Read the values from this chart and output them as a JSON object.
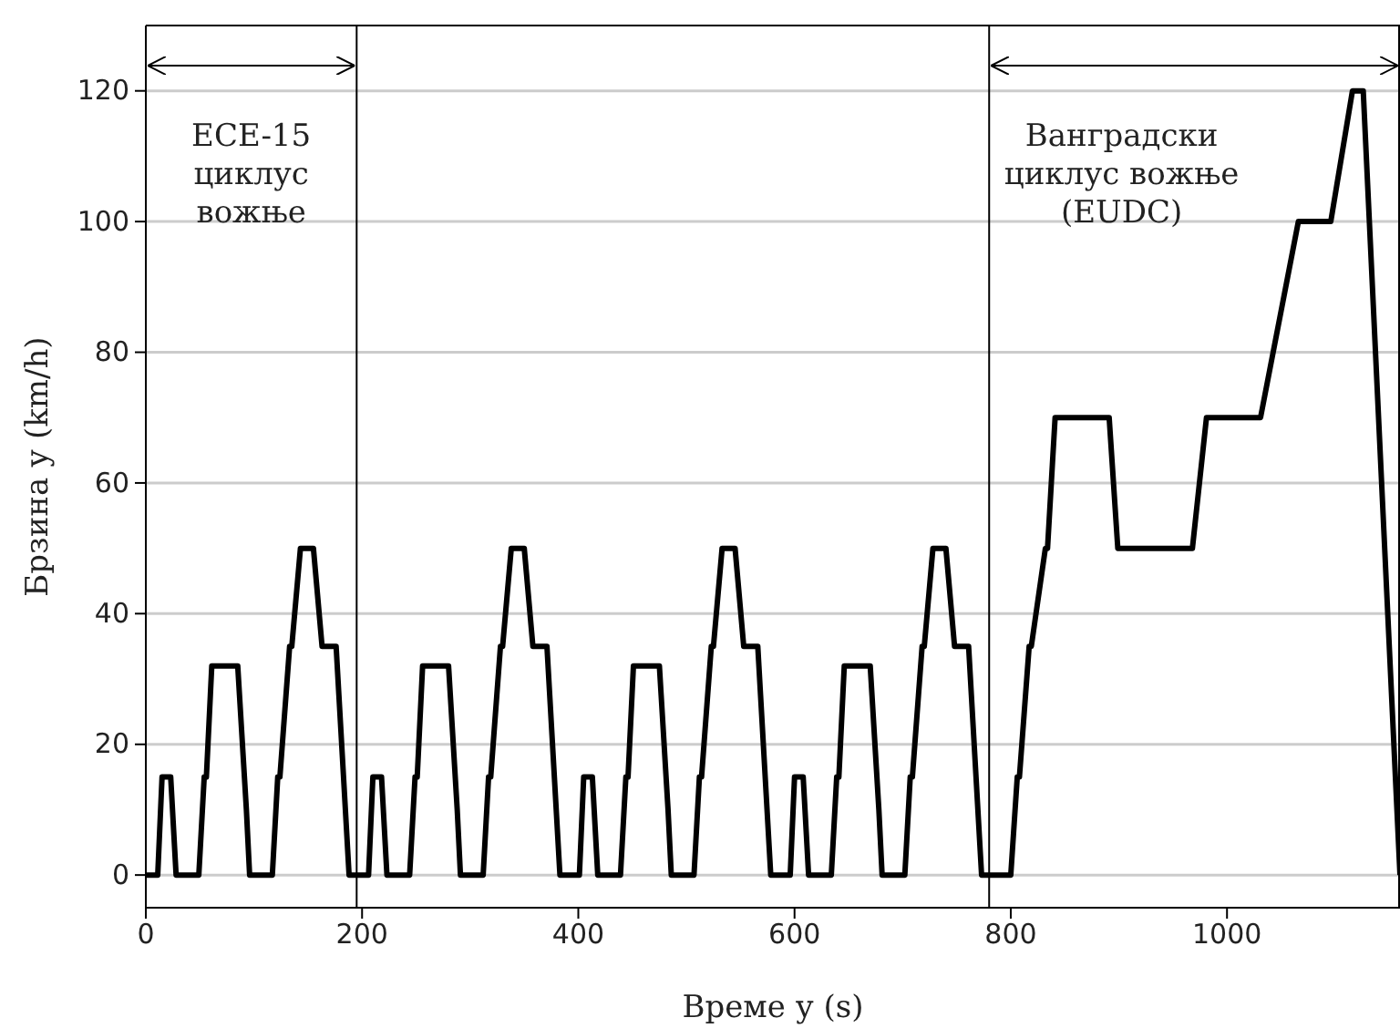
{
  "chart_data": {
    "type": "line",
    "xlabel": "Време у (s)",
    "ylabel": "Брзина у (km/h)",
    "xlim": [
      0,
      1160
    ],
    "xticks": [
      0,
      200,
      400,
      600,
      800,
      1000
    ],
    "ylim": [
      -5,
      130
    ],
    "yticks": [
      0,
      20,
      40,
      60,
      80,
      100,
      120
    ],
    "grid": "y",
    "marker": "none",
    "line_style": "solid",
    "series": [
      {
        "color": "#000000",
        "x": [
          0,
          11,
          15,
          23,
          28,
          49,
          54,
          56,
          61,
          85,
          93,
          96,
          117,
          122,
          124,
          133,
          135,
          143,
          155,
          163,
          176,
          188,
          195,
          206,
          210,
          218,
          223,
          244,
          249,
          251,
          256,
          280,
          288,
          291,
          312,
          317,
          319,
          328,
          330,
          338,
          350,
          358,
          371,
          383,
          390,
          401,
          405,
          413,
          418,
          439,
          444,
          446,
          451,
          475,
          483,
          486,
          507,
          512,
          514,
          523,
          525,
          533,
          545,
          553,
          566,
          578,
          585,
          596,
          600,
          608,
          613,
          634,
          639,
          641,
          646,
          670,
          678,
          681,
          702,
          707,
          709,
          718,
          720,
          728,
          740,
          748,
          761,
          773,
          780,
          800,
          806,
          808,
          817,
          819,
          832,
          834,
          841,
          891,
          899,
          968,
          981,
          1031,
          1066,
          1096,
          1116,
          1126,
          1160
        ],
        "values": [
          0,
          0,
          15,
          15,
          0,
          0,
          15,
          15,
          32,
          32,
          10,
          0,
          0,
          15,
          15,
          35,
          35,
          50,
          50,
          35,
          35,
          0,
          0,
          0,
          15,
          15,
          0,
          0,
          15,
          15,
          32,
          32,
          10,
          0,
          0,
          15,
          15,
          35,
          35,
          50,
          50,
          35,
          35,
          0,
          0,
          0,
          15,
          15,
          0,
          0,
          15,
          15,
          32,
          32,
          10,
          0,
          0,
          15,
          15,
          35,
          35,
          50,
          50,
          35,
          35,
          0,
          0,
          0,
          15,
          15,
          0,
          0,
          15,
          15,
          32,
          32,
          10,
          0,
          0,
          15,
          15,
          35,
          35,
          50,
          50,
          35,
          35,
          0,
          0,
          0,
          15,
          15,
          35,
          35,
          50,
          50,
          70,
          70,
          50,
          50,
          70,
          70,
          100,
          100,
          120,
          120,
          0
        ]
      }
    ],
    "ref_lines": [
      {
        "axis": "x",
        "value": 195,
        "color": "#000000"
      },
      {
        "axis": "x",
        "value": 780,
        "color": "#000000"
      }
    ],
    "annotations": [
      "ECE-15\nциклус\nвожње",
      "Ванградски\nциклус вожње\n(EUDC)"
    ]
  }
}
